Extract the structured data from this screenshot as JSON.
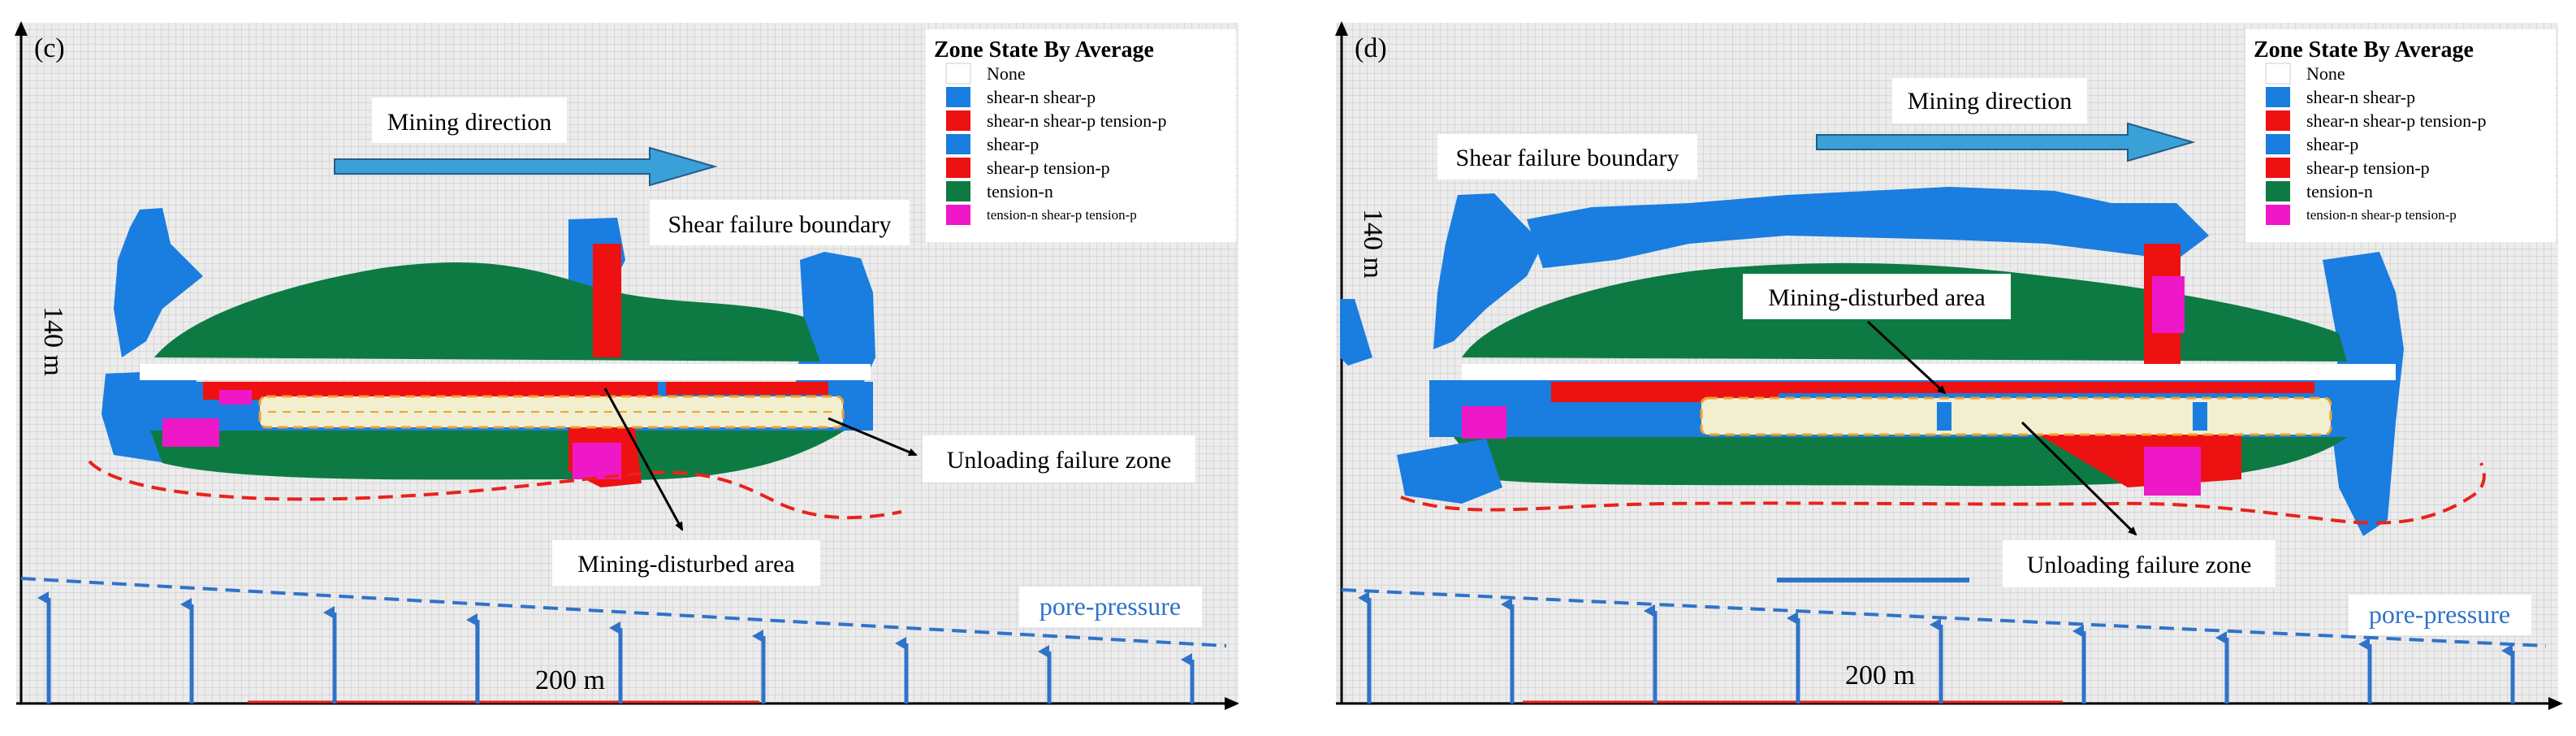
{
  "panels": [
    {
      "id": "c",
      "label": "(c)",
      "legend_title": "Zone State By Average",
      "legend_items": [
        {
          "label": "None",
          "color": "#ffffff",
          "small": false
        },
        {
          "label": "shear-n shear-p",
          "color": "#1a7de0",
          "small": false
        },
        {
          "label": "shear-n shear-p tension-p",
          "color": "#ee1111",
          "small": false
        },
        {
          "label": "shear-p",
          "color": "#1a7de0",
          "small": false
        },
        {
          "label": "shear-p tension-p",
          "color": "#ee1111",
          "small": false
        },
        {
          "label": "tension-n",
          "color": "#0d7a43",
          "small": false
        },
        {
          "label": "tension-n shear-p tension-p",
          "color": "#ef18c8",
          "small": true
        }
      ],
      "annotations": {
        "mining_direction": "Mining direction",
        "shear_failure_boundary": "Shear failure boundary",
        "unloading_failure_zone": "Unloading failure zone",
        "mining_disturbed_area": "Mining-disturbed area",
        "pore_pressure": "pore-pressure"
      },
      "dimensions": {
        "height": "140 m",
        "width": "200 m"
      }
    },
    {
      "id": "d",
      "label": "(d)",
      "legend_title": "Zone State By Average",
      "legend_items": [
        {
          "label": "None",
          "color": "#ffffff",
          "small": false
        },
        {
          "label": "shear-n shear-p",
          "color": "#1a7de0",
          "small": false
        },
        {
          "label": "shear-n shear-p tension-p",
          "color": "#ee1111",
          "small": false
        },
        {
          "label": "shear-p",
          "color": "#1a7de0",
          "small": false
        },
        {
          "label": "shear-p tension-p",
          "color": "#ee1111",
          "small": false
        },
        {
          "label": "tension-n",
          "color": "#0d7a43",
          "small": false
        },
        {
          "label": "tension-n shear-p tension-p",
          "color": "#ef18c8",
          "small": true
        }
      ],
      "annotations": {
        "mining_direction": "Mining direction",
        "shear_failure_boundary": "Shear failure boundary",
        "mining_disturbed_area": "Mining-disturbed area",
        "unloading_failure_zone": "Unloading failure zone",
        "pore_pressure": "pore-pressure"
      },
      "dimensions": {
        "height": "140 m",
        "width": "200 m"
      }
    }
  ],
  "colors": {
    "grid_bg": "#ececec",
    "grid_line": "#c4c4c4",
    "shear_blue": "#1a7de0",
    "tension_red": "#ee1111",
    "tension_green": "#0d7a43",
    "magenta": "#ef18c8",
    "arrow_blue": "#3aa0d8",
    "pressure_blue": "#2f73c9",
    "boundary_red": "#e8231c",
    "zone_fill": "#f2efd0",
    "zone_border": "#f0a030"
  }
}
